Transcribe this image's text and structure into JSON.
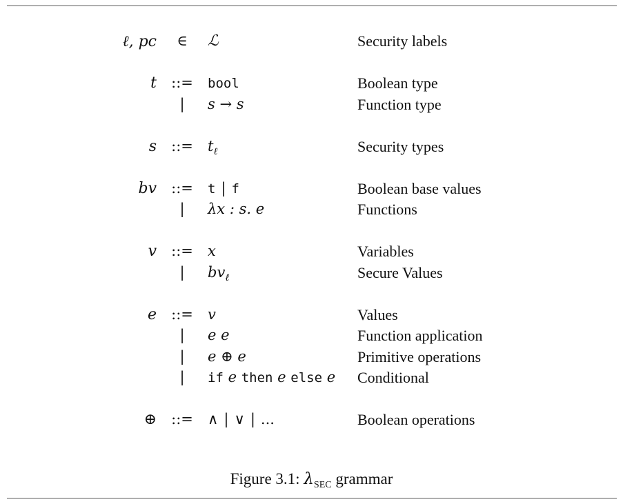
{
  "grammar": {
    "labels_row": {
      "lhs": "ℓ, pc",
      "op": "∈",
      "rhs": "ℒ",
      "desc": "Security labels"
    },
    "t_rows": [
      {
        "lhs": "t",
        "op": "::=",
        "rhs": "bool",
        "desc": "Boolean type"
      },
      {
        "lhs": "",
        "op": "|",
        "rhs": "s → s",
        "desc": "Function type"
      }
    ],
    "s_rows": [
      {
        "lhs": "s",
        "op": "::=",
        "rhs_base": "t",
        "rhs_sub": "ℓ",
        "desc": "Security types"
      }
    ],
    "bv_rows": [
      {
        "lhs": "bv",
        "op": "::=",
        "rhs_a": "t",
        "rhs_b": "f",
        "desc": "Boolean base values"
      },
      {
        "lhs": "",
        "op": "|",
        "rhs": "λx : s. e",
        "desc": "Functions"
      }
    ],
    "v_rows": [
      {
        "lhs": "v",
        "op": "::=",
        "rhs": "x",
        "desc": "Variables"
      },
      {
        "lhs": "",
        "op": "|",
        "rhs_base": "bv",
        "rhs_sub": "ℓ",
        "desc": "Secure Values"
      }
    ],
    "e_rows": [
      {
        "lhs": "e",
        "op": "::=",
        "rhs": "v",
        "desc": "Values"
      },
      {
        "lhs": "",
        "op": "|",
        "rhs": "e e",
        "desc": "Function application"
      },
      {
        "lhs": "",
        "op": "|",
        "rhs": "e ⊕ e",
        "desc": "Primitive operations"
      },
      {
        "lhs": "",
        "op": "|",
        "kw_if": "if",
        "kw_then": "then",
        "kw_else": "else",
        "var": "e",
        "desc": "Conditional"
      }
    ],
    "oplus_row": {
      "lhs": "⊕",
      "op": "::=",
      "rhs_and": "∧",
      "rhs_or": "∨",
      "rhs_dots": "...",
      "desc": "Boolean operations"
    }
  },
  "caption": {
    "prefix": "Figure 3.1: ",
    "lambda": "λ",
    "sub": "SEC",
    "suffix": " grammar"
  }
}
